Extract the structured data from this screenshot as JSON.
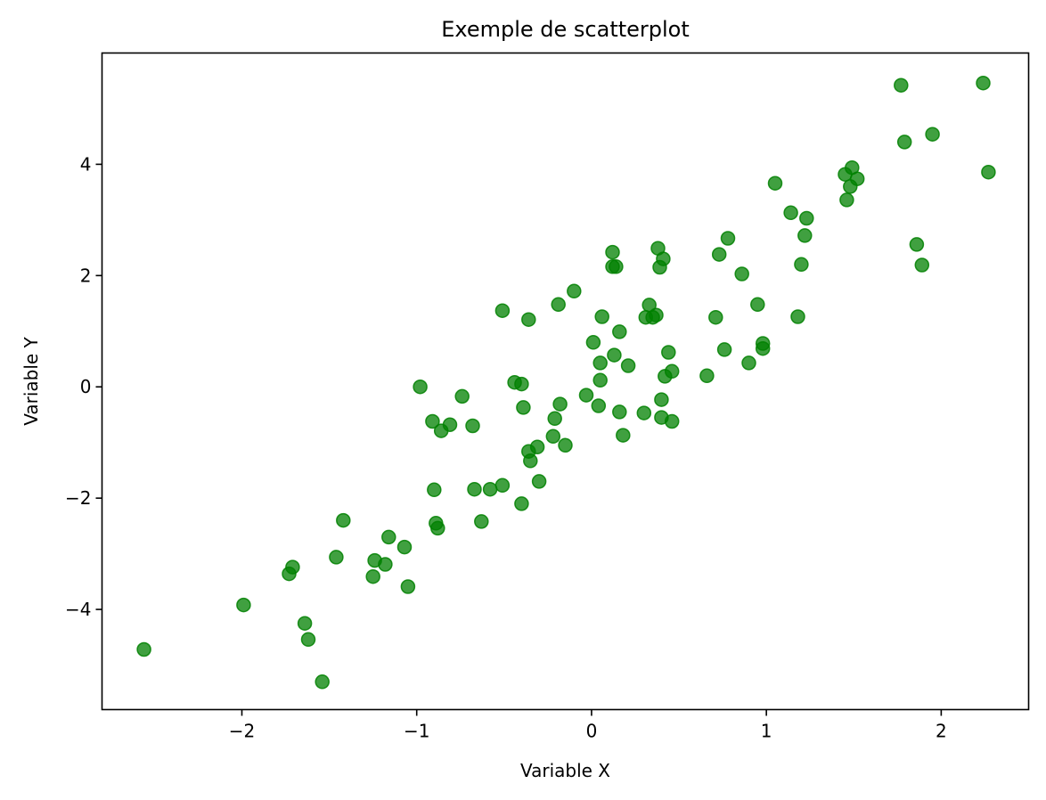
{
  "chart_data": {
    "type": "scatter",
    "title": "Exemple de scatterplot",
    "xlabel": "Variable X",
    "ylabel": "Variable Y",
    "xlim": [
      -2.8,
      2.5
    ],
    "ylim": [
      -5.8,
      6.0
    ],
    "xticks": [
      -2,
      -1,
      0,
      1,
      2
    ],
    "yticks": [
      -4,
      -2,
      0,
      2,
      4
    ],
    "xtick_labels": [
      "−2",
      "−1",
      "0",
      "1",
      "2"
    ],
    "ytick_labels": [
      "−4",
      "−2",
      "0",
      "2",
      "4"
    ],
    "grid": false,
    "marker_color": "#008000",
    "marker_alpha": 0.75,
    "points": [
      [
        -2.56,
        -4.72
      ],
      [
        -1.99,
        -3.92
      ],
      [
        -1.73,
        -3.36
      ],
      [
        -1.71,
        -3.24
      ],
      [
        -1.64,
        -4.25
      ],
      [
        -1.62,
        -4.54
      ],
      [
        -1.54,
        -5.3
      ],
      [
        -1.46,
        -3.06
      ],
      [
        -1.42,
        -2.4
      ],
      [
        -1.25,
        -3.41
      ],
      [
        -1.24,
        -3.12
      ],
      [
        -1.18,
        -3.19
      ],
      [
        -1.16,
        -2.7
      ],
      [
        -1.07,
        -2.88
      ],
      [
        -1.05,
        -3.59
      ],
      [
        -0.98,
        0.0
      ],
      [
        -0.91,
        -0.62
      ],
      [
        -0.9,
        -1.85
      ],
      [
        -0.89,
        -2.45
      ],
      [
        -0.88,
        -2.54
      ],
      [
        -0.86,
        -0.79
      ],
      [
        -0.81,
        -0.68
      ],
      [
        -0.74,
        -0.17
      ],
      [
        -0.68,
        -0.7
      ],
      [
        -0.67,
        -1.84
      ],
      [
        -0.63,
        -2.42
      ],
      [
        -0.58,
        -1.84
      ],
      [
        -0.51,
        -1.77
      ],
      [
        -0.51,
        1.37
      ],
      [
        -0.44,
        0.08
      ],
      [
        -0.4,
        0.05
      ],
      [
        -0.4,
        -2.1
      ],
      [
        -0.39,
        -0.37
      ],
      [
        -0.36,
        1.21
      ],
      [
        -0.36,
        -1.16
      ],
      [
        -0.35,
        -1.33
      ],
      [
        -0.31,
        -1.08
      ],
      [
        -0.3,
        -1.7
      ],
      [
        -0.22,
        -0.89
      ],
      [
        -0.21,
        -0.57
      ],
      [
        -0.19,
        1.48
      ],
      [
        -0.18,
        -0.31
      ],
      [
        -0.15,
        -1.05
      ],
      [
        -0.1,
        1.72
      ],
      [
        -0.03,
        -0.15
      ],
      [
        0.01,
        0.8
      ],
      [
        0.04,
        -0.34
      ],
      [
        0.05,
        0.43
      ],
      [
        0.05,
        0.12
      ],
      [
        0.06,
        1.26
      ],
      [
        0.12,
        2.16
      ],
      [
        0.12,
        2.42
      ],
      [
        0.13,
        0.57
      ],
      [
        0.14,
        2.16
      ],
      [
        0.16,
        0.99
      ],
      [
        0.16,
        -0.45
      ],
      [
        0.18,
        -0.87
      ],
      [
        0.21,
        0.38
      ],
      [
        0.3,
        -0.47
      ],
      [
        0.31,
        1.25
      ],
      [
        0.33,
        1.47
      ],
      [
        0.35,
        1.25
      ],
      [
        0.37,
        1.29
      ],
      [
        0.38,
        2.49
      ],
      [
        0.39,
        2.15
      ],
      [
        0.4,
        -0.23
      ],
      [
        0.4,
        -0.55
      ],
      [
        0.41,
        2.3
      ],
      [
        0.42,
        0.19
      ],
      [
        0.44,
        0.62
      ],
      [
        0.46,
        -0.62
      ],
      [
        0.46,
        0.28
      ],
      [
        0.66,
        0.2
      ],
      [
        0.71,
        1.25
      ],
      [
        0.73,
        2.38
      ],
      [
        0.76,
        0.67
      ],
      [
        0.78,
        2.67
      ],
      [
        0.86,
        2.03
      ],
      [
        0.9,
        0.43
      ],
      [
        0.95,
        1.48
      ],
      [
        0.98,
        0.78
      ],
      [
        0.98,
        0.69
      ],
      [
        1.05,
        3.66
      ],
      [
        1.14,
        3.13
      ],
      [
        1.18,
        1.26
      ],
      [
        1.2,
        2.2
      ],
      [
        1.22,
        2.72
      ],
      [
        1.23,
        3.03
      ],
      [
        1.45,
        3.82
      ],
      [
        1.46,
        3.36
      ],
      [
        1.48,
        3.6
      ],
      [
        1.49,
        3.94
      ],
      [
        1.52,
        3.74
      ],
      [
        1.77,
        5.42
      ],
      [
        1.79,
        4.4
      ],
      [
        1.86,
        2.56
      ],
      [
        1.89,
        2.19
      ],
      [
        1.95,
        4.54
      ],
      [
        2.24,
        5.46
      ],
      [
        2.27,
        3.86
      ]
    ]
  }
}
